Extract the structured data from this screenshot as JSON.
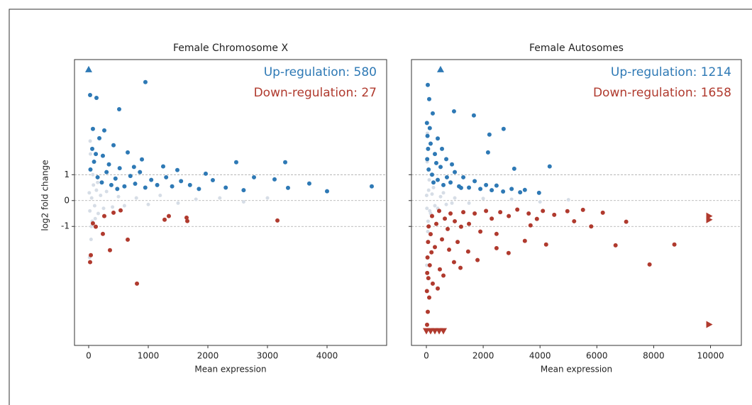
{
  "chart_data": [
    {
      "type": "scatter",
      "title": "Female Chromosome X",
      "xlabel": "Mean expression",
      "ylabel": "log2 fold change",
      "xlim": [
        -238,
        5000
      ],
      "ylim": [
        -5.6,
        5.45
      ],
      "xticks": [
        0,
        1000,
        2000,
        3000,
        4000
      ],
      "yticks": [
        -1,
        0,
        1
      ],
      "grid": true,
      "tick_labels_y": true,
      "annotations": [
        {
          "text": "Up-regulation: 580",
          "color": "#2e79b5"
        },
        {
          "text": "Down-regulation: 27",
          "color": "#b03a2e"
        }
      ],
      "series": [
        {
          "color": "#d6dde6",
          "marker": "circle",
          "x": [
            10,
            20,
            30,
            40,
            50,
            60,
            80,
            100,
            130,
            160,
            200,
            250,
            300,
            400,
            500,
            600,
            800,
            1000,
            1200,
            1500,
            1800,
            2200,
            2600,
            3000,
            15,
            25,
            45,
            70,
            110,
            150
          ],
          "values": [
            0.3,
            -0.4,
            1.8,
            -1.5,
            0.1,
            -0.8,
            0.6,
            -0.2,
            0.4,
            -0.5,
            0.2,
            -0.3,
            0.35,
            -0.25,
            0.15,
            -0.2,
            0.1,
            -0.15,
            0.2,
            -0.1,
            0.05,
            0.1,
            -0.05,
            0.1,
            -2.2,
            2.3,
            -1.0,
            1.0,
            -0.7,
            0.7
          ]
        },
        {
          "color": "#2e79b5",
          "marker": "circle",
          "x": [
            952,
            24,
            131,
            512,
            71,
            262,
            2476,
            3298,
            2774,
            3119,
            3702,
            3345,
            4000,
            4750,
            2083,
            1964,
            1488,
            1250,
            893,
            655,
            417,
            179,
            60,
            238,
            30,
            90,
            150,
            220,
            300,
            380,
            450,
            520,
            600,
            700,
            780,
            860,
            950,
            1050,
            1150,
            1300,
            1400,
            1550,
            1700,
            1850,
            2300,
            2600,
            340,
            120,
            480,
            760
          ],
          "values": [
            4.58,
            4.08,
            3.97,
            3.53,
            2.77,
            2.71,
            1.48,
            1.48,
            0.9,
            0.82,
            0.66,
            0.49,
            0.36,
            0.55,
            0.79,
            1.04,
            1.18,
            1.32,
            1.59,
            1.86,
            2.14,
            2.41,
            2.0,
            1.73,
            1.2,
            1.5,
            0.9,
            0.7,
            1.1,
            0.6,
            0.85,
            1.25,
            0.55,
            0.95,
            0.65,
            1.1,
            0.5,
            0.8,
            0.6,
            0.9,
            0.55,
            0.75,
            0.6,
            0.45,
            0.5,
            0.4,
            1.4,
            1.8,
            0.45,
            1.3
          ]
        },
        {
          "color": "#b03a2e",
          "marker": "circle",
          "x": [
            71,
            119,
            262,
            417,
            536,
            238,
            36,
            357,
            655,
            810,
            1274,
            1345,
            1643,
            1655,
            3167,
            24
          ],
          "values": [
            -0.88,
            -1.01,
            -0.6,
            -0.47,
            -0.38,
            -1.29,
            -2.11,
            -1.92,
            -1.51,
            -3.21,
            -0.74,
            -0.6,
            -0.66,
            -0.79,
            -0.77,
            -2.38
          ]
        },
        {
          "color": "#2e79b5",
          "marker": "triangle-up",
          "x": [
            0
          ],
          "values": [
            5.07
          ]
        }
      ]
    },
    {
      "type": "scatter",
      "title": "Female Autosomes",
      "xlabel": "Mean expression",
      "xlim": [
        -524,
        11085
      ],
      "ylim": [
        -5.6,
        5.45
      ],
      "xticks": [
        0,
        2000,
        4000,
        6000,
        8000,
        10000
      ],
      "yticks": [
        -1,
        0,
        1
      ],
      "grid": true,
      "tick_labels_y": false,
      "annotations": [
        {
          "text": "Up-regulation: 1214",
          "color": "#2e79b5"
        },
        {
          "text": "Down-regulation: 1658",
          "color": "#b03a2e"
        }
      ],
      "series": [
        {
          "color": "#d6dde6",
          "marker": "circle",
          "x": [
            10,
            20,
            30,
            50,
            80,
            120,
            200,
            300,
            500,
            700,
            1000,
            1500,
            2000,
            3000,
            4000,
            5000,
            15,
            35,
            60,
            100,
            150,
            250,
            400,
            600,
            900
          ],
          "values": [
            0.2,
            -0.3,
            1.5,
            -1.2,
            0.4,
            -0.4,
            0.25,
            -0.2,
            0.15,
            -0.15,
            0.1,
            -0.1,
            0.08,
            0.05,
            -0.05,
            0.03,
            -2.5,
            2.6,
            -0.8,
            0.8,
            -0.5,
            0.5,
            -0.3,
            0.3,
            -0.1
          ]
        },
        {
          "color": "#2e79b5",
          "marker": "circle",
          "x": [
            50,
            100,
            224,
            973,
            1671,
            2219,
            2718,
            2170,
            4339,
            3092,
            3965,
            3466,
            2469,
            1222,
            723,
            349,
            20,
            40,
            60,
            30,
            80,
            150,
            200,
            300,
            400,
            500,
            600,
            700,
            850,
            1000,
            1150,
            1300,
            1500,
            1700,
            1900,
            2100,
            2300,
            2700,
            3000,
            3300,
            400,
            120,
            250,
            550,
            900
          ],
          "values": [
            4.47,
            3.92,
            3.37,
            3.45,
            3.29,
            2.55,
            2.77,
            1.86,
            1.32,
            1.23,
            0.3,
            0.41,
            0.58,
            0.49,
            0.9,
            1.45,
            3.0,
            2.5,
            2.0,
            1.6,
            1.2,
            2.2,
            1.0,
            1.8,
            0.8,
            1.3,
            0.6,
            1.6,
            0.7,
            1.1,
            0.55,
            0.9,
            0.5,
            0.75,
            0.45,
            0.6,
            0.4,
            0.35,
            0.45,
            0.32,
            2.4,
            2.8,
            0.7,
            2.0,
            1.4
          ]
        },
        {
          "color": "#b03a2e",
          "marker": "circle",
          "x": [
            50,
            100,
            224,
            474,
            973,
            1471,
            2469,
            3466,
            4214,
            4963,
            5511,
            6209,
            7032,
            6658,
            7855,
            8728,
            2893,
            3890,
            3666,
            2469,
            1222,
            20,
            30,
            40,
            60,
            80,
            120,
            150,
            200,
            300,
            350,
            450,
            550,
            650,
            750,
            850,
            1000,
            1100,
            1300,
            1500,
            1700,
            1900,
            2100,
            2300,
            2600,
            2900,
            3200,
            3600,
            4100,
            4500,
            5200,
            5800,
            25,
            70,
            180,
            400,
            600,
            800,
            1200,
            1800
          ],
          "values": [
            -4.3,
            -3.75,
            -3.21,
            -2.66,
            -2.38,
            -1.97,
            -1.84,
            -1.56,
            -1.7,
            -0.41,
            -0.36,
            -0.47,
            -0.82,
            -1.73,
            -2.47,
            -1.7,
            -2.03,
            -0.71,
            -0.96,
            -1.29,
            -1.01,
            -3.5,
            -2.8,
            -2.2,
            -1.6,
            -1.0,
            -2.5,
            -1.3,
            -0.6,
            -1.8,
            -0.9,
            -0.4,
            -1.5,
            -0.7,
            -1.1,
            -0.5,
            -0.8,
            -1.6,
            -0.45,
            -0.9,
            -0.5,
            -1.2,
            -0.4,
            -0.7,
            -0.45,
            -0.6,
            -0.35,
            -0.5,
            -0.4,
            -0.55,
            -0.8,
            -1.0,
            -4.8,
            -3.0,
            -2.0,
            -3.4,
            -2.9,
            -1.9,
            -2.6,
            -2.3
          ]
        },
        {
          "color": "#2e79b5",
          "marker": "triangle-up",
          "x": [
            499
          ],
          "values": [
            5.07
          ]
        },
        {
          "color": "#b03a2e",
          "marker": "triangle-down",
          "x": [
            0,
            150,
            300,
            450,
            600
          ],
          "values": [
            -5.04,
            -5.04,
            -5.04,
            -5.04,
            -5.04
          ]
        },
        {
          "color": "#b03a2e",
          "marker": "triangle-right",
          "x": [
            9950,
            9950,
            9950
          ],
          "values": [
            -0.6,
            -0.74,
            -4.79
          ]
        }
      ]
    }
  ]
}
